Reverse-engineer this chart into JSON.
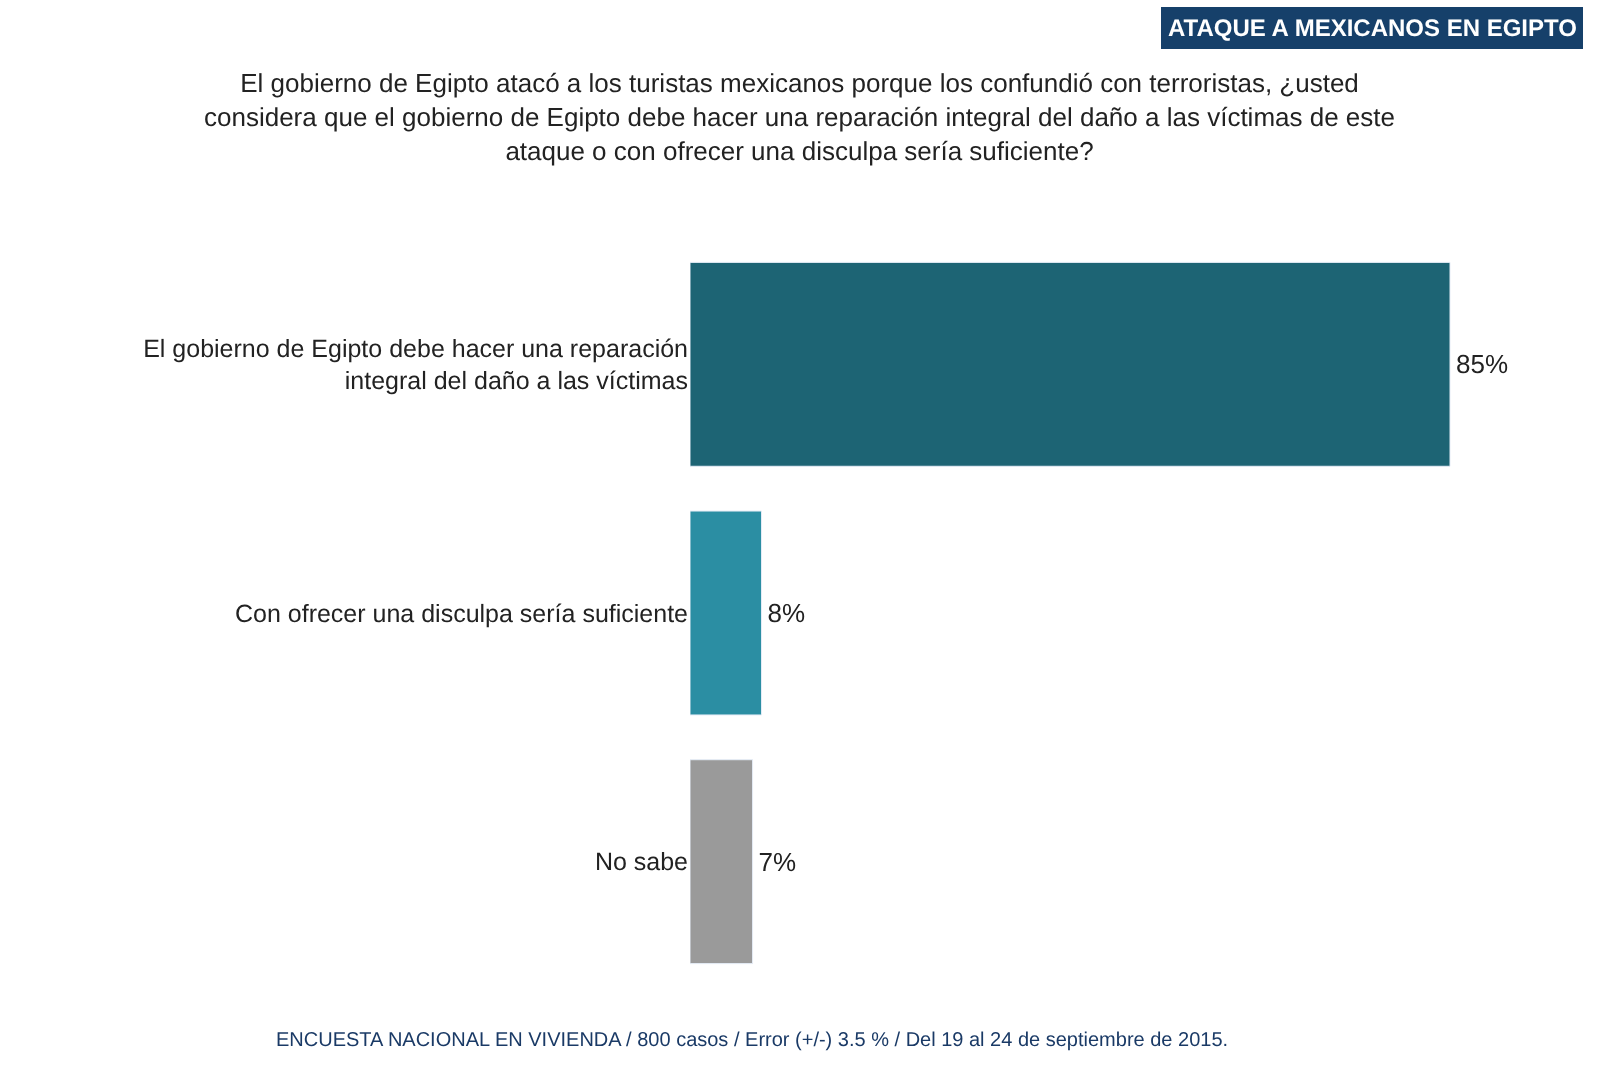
{
  "chart_data": {
    "type": "bar",
    "orientation": "horizontal",
    "title": "ATAQUE A MEXICANOS EN EGIPTO",
    "subtitle": "El gobierno de Egipto atacó a los turistas mexicanos porque los confundió con terroristas, ¿usted considera que el gobierno de Egipto debe hacer una reparación integral del daño a las víctimas de este ataque o con ofrecer una disculpa sería suficiente?",
    "categories": [
      "El gobierno de Egipto debe hacer una reparación integral del daño a las víctimas",
      "Con ofrecer una disculpa sería suficiente",
      "No sabe"
    ],
    "values": [
      85,
      8,
      7
    ],
    "colors": [
      "#1d6474",
      "#2b8ea3",
      "#9a9a9a"
    ],
    "value_labels": [
      "85%",
      "8%",
      "7%"
    ],
    "annotations": [
      "ENCUESTA NACIONAL EN VIVIENDA / 800 casos / Error (+/-) 3.5 % / Del 19 al 24 de septiembre de 2015."
    ]
  }
}
